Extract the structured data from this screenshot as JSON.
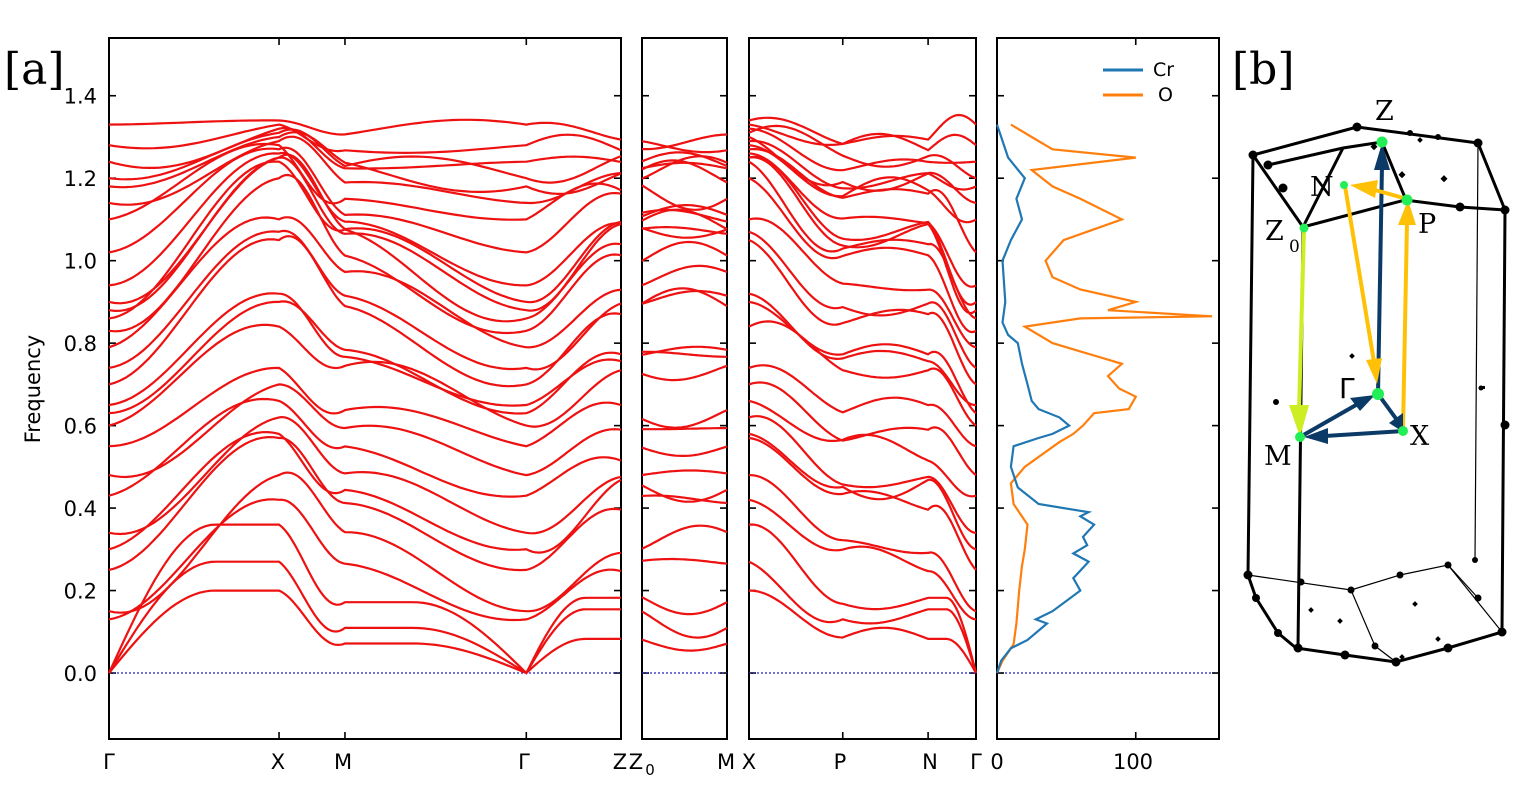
{
  "figure": {
    "panel_a_label": "[a]",
    "panel_b_label": "[b]"
  },
  "chart_data": [
    {
      "type": "line",
      "name": "phonon-dispersion",
      "ylabel": "Frequency",
      "ylim": [
        -0.16,
        1.54
      ],
      "yticks": [
        0.0,
        0.2,
        0.4,
        0.6,
        0.8,
        1.0,
        1.2,
        1.4
      ],
      "ytick_labels": [
        "0.0",
        "0.2",
        "0.4",
        "0.6",
        "0.8",
        "1.0",
        "1.2",
        "1.4"
      ],
      "line_color": "#ee1111",
      "zero_line_color": "#2222cc",
      "segments": [
        {
          "path": [
            "Γ",
            "X",
            "M",
            "Γ",
            "Z"
          ],
          "x": [
            0,
            0.993,
            1.378,
            2.437,
            2.99
          ]
        },
        {
          "path": [
            "Z0",
            "M"
          ],
          "x": [
            0,
            1
          ]
        },
        {
          "path": [
            "X",
            "P",
            "N",
            "Γ"
          ],
          "x": [
            0,
            0.413,
            0.789,
            1.0
          ]
        }
      ],
      "xtick_labels": [
        "Γ",
        "X",
        "M",
        "Γ",
        "Z",
        "Z",
        "0",
        "M",
        "X",
        "P",
        "N",
        "Γ"
      ],
      "bands_at_gamma": [
        0.0,
        0.0,
        0.0,
        0.13,
        0.15,
        0.25,
        0.3,
        0.34,
        0.43,
        0.48,
        0.55,
        0.6,
        0.63,
        0.65,
        0.7,
        0.74,
        0.79,
        0.83,
        0.86,
        0.88,
        0.9,
        0.94,
        1.02,
        1.1,
        1.14,
        1.18,
        1.2,
        1.24,
        1.28,
        1.33
      ],
      "bands_at_X": [
        0.2,
        0.27,
        0.36,
        0.42,
        0.48,
        0.57,
        0.58,
        0.62,
        0.66,
        0.7,
        0.74,
        0.84,
        0.9,
        0.92,
        1.05,
        1.07,
        1.1,
        1.2,
        1.24,
        1.25
      ]
    },
    {
      "type": "line",
      "name": "phonon-dos",
      "xlim": [
        0,
        160
      ],
      "xticks": [
        0,
        100
      ],
      "xtick_labels": [
        "0",
        "100"
      ],
      "ylim": [
        -0.16,
        1.54
      ],
      "series": [
        {
          "name": "Cr",
          "color": "#1f77b4",
          "points": [
            [
              0,
              0.0
            ],
            [
              3,
              0.03
            ],
            [
              10,
              0.06
            ],
            [
              22,
              0.08
            ],
            [
              36,
              0.12
            ],
            [
              28,
              0.13
            ],
            [
              40,
              0.15
            ],
            [
              60,
              0.2
            ],
            [
              55,
              0.23
            ],
            [
              66,
              0.27
            ],
            [
              55,
              0.29
            ],
            [
              65,
              0.31
            ],
            [
              62,
              0.33
            ],
            [
              70,
              0.36
            ],
            [
              60,
              0.38
            ],
            [
              66,
              0.39
            ],
            [
              30,
              0.41
            ],
            [
              15,
              0.45
            ],
            [
              10,
              0.5
            ],
            [
              12,
              0.55
            ],
            [
              30,
              0.57
            ],
            [
              40,
              0.58
            ],
            [
              52,
              0.6
            ],
            [
              45,
              0.62
            ],
            [
              30,
              0.64
            ],
            [
              25,
              0.66
            ],
            [
              22,
              0.7
            ],
            [
              18,
              0.75
            ],
            [
              15,
              0.8
            ],
            [
              8,
              0.82
            ],
            [
              4,
              0.85
            ],
            [
              6,
              0.9
            ],
            [
              4,
              1.0
            ],
            [
              10,
              1.05
            ],
            [
              18,
              1.1
            ],
            [
              14,
              1.15
            ],
            [
              20,
              1.2
            ],
            [
              8,
              1.25
            ],
            [
              3,
              1.3
            ],
            [
              0,
              1.33
            ]
          ]
        },
        {
          "name": "O",
          "color": "#ff7f0e",
          "points": [
            [
              0,
              0.0
            ],
            [
              4,
              0.03
            ],
            [
              12,
              0.07
            ],
            [
              14,
              0.12
            ],
            [
              16,
              0.2
            ],
            [
              18,
              0.26
            ],
            [
              20,
              0.3
            ],
            [
              22,
              0.36
            ],
            [
              12,
              0.41
            ],
            [
              10,
              0.46
            ],
            [
              20,
              0.5
            ],
            [
              45,
              0.56
            ],
            [
              55,
              0.58
            ],
            [
              62,
              0.6
            ],
            [
              70,
              0.63
            ],
            [
              95,
              0.64
            ],
            [
              100,
              0.67
            ],
            [
              88,
              0.69
            ],
            [
              80,
              0.72
            ],
            [
              90,
              0.75
            ],
            [
              70,
              0.77
            ],
            [
              60,
              0.78
            ],
            [
              40,
              0.8
            ],
            [
              20,
              0.84
            ],
            [
              60,
              0.86
            ],
            [
              155,
              0.865
            ],
            [
              80,
              0.88
            ],
            [
              100,
              0.9
            ],
            [
              60,
              0.93
            ],
            [
              40,
              0.96
            ],
            [
              35,
              1.0
            ],
            [
              48,
              1.05
            ],
            [
              90,
              1.1
            ],
            [
              60,
              1.15
            ],
            [
              40,
              1.18
            ],
            [
              25,
              1.22
            ],
            [
              100,
              1.25
            ],
            [
              40,
              1.27
            ],
            [
              25,
              1.3
            ],
            [
              10,
              1.33
            ]
          ]
        }
      ],
      "legend": {
        "location": "upper right",
        "entries": [
          "Cr",
          "O"
        ]
      }
    },
    {
      "type": "diagram",
      "name": "brillouin-zone",
      "points": [
        "Z",
        "N",
        "P",
        "Z",
        "0",
        "Γ",
        "X",
        "M"
      ],
      "path_colors": {
        "Z-M": "#ccee22",
        "Z-Gamma": "#0b3a66",
        "N-P": "#ffc107",
        "Gamma-X": "#0b3a66",
        "X-M": "#0b3a66"
      }
    }
  ]
}
